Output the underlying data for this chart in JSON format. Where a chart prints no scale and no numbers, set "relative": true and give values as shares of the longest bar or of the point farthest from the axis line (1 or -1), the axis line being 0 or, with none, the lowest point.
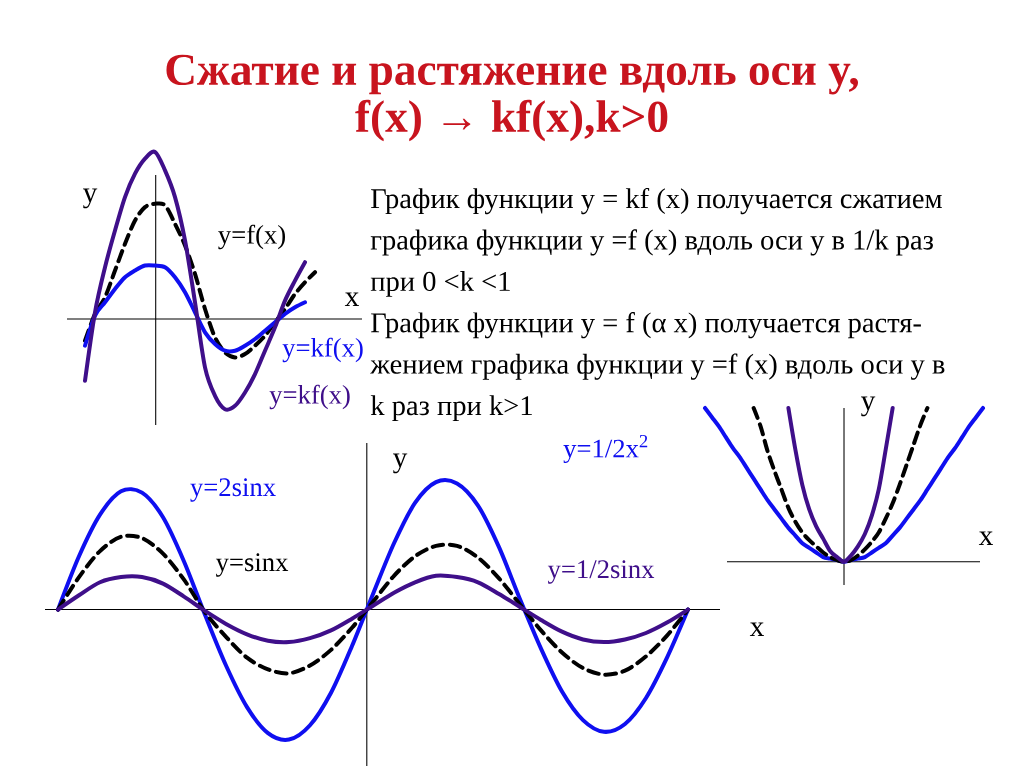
{
  "chart_data": [
    {
      "type": "line",
      "title": "Сжатие и растяжение вдоль оси y, f(x) → kf(x),k>0",
      "xlabel": "x",
      "ylabel": "y",
      "relative": true,
      "annotations": [
        "График функции y = kf (x) получается сжатием",
        "графика функции y =f (x) вдоль оси y в 1/k раз",
        "при 0 <k <1",
        "График функции y = f (α x) получается растя-",
        "жением графика функции y =f (x) вдоль оси y в",
        "k раз при k>1"
      ],
      "categories": [
        null,
        null,
        null,
        null,
        null,
        null,
        null,
        null,
        null,
        null,
        null,
        null,
        null,
        null,
        null,
        null,
        null,
        null,
        null,
        null,
        null,
        null,
        null,
        null
      ],
      "series": [
        {
          "name": "y=f(x)",
          "color": "#000000",
          "line_style": "dashed",
          "values": [
            -0.13,
            0.03,
            0.13,
            0.29,
            0.45,
            0.59,
            0.67,
            0.69,
            0.68,
            0.57,
            0.44,
            0.27,
            0.06,
            -0.11,
            -0.2,
            -0.23,
            -0.21,
            -0.16,
            -0.1,
            -0.02,
            0.06,
            0.15,
            0.22,
            0.28
          ]
        },
        {
          "name": "y=kf(x)",
          "color": "#0f0ff0",
          "values": [
            -0.16,
            0.02,
            0.1,
            0.18,
            0.25,
            0.29,
            0.32,
            0.32,
            0.31,
            0.25,
            0.16,
            0.04,
            -0.08,
            -0.15,
            -0.19,
            -0.19,
            -0.16,
            -0.12,
            -0.07,
            -0.02,
            0.03,
            0.07,
            0.1,
            null
          ]
        },
        {
          "name": "y=kf(x)",
          "color": "#3f0f8a",
          "values": [
            -0.37,
            0.04,
            0.31,
            0.53,
            0.73,
            0.87,
            0.96,
            1.0,
            0.89,
            0.73,
            0.47,
            0.1,
            -0.29,
            -0.46,
            -0.54,
            -0.52,
            -0.44,
            -0.33,
            -0.19,
            -0.05,
            0.11,
            0.23,
            0.34,
            null
          ]
        }
      ]
    },
    {
      "type": "line",
      "xlabel": "x",
      "ylabel": "y",
      "relative": true,
      "categories": [
        null,
        null,
        null,
        null,
        null,
        null,
        null,
        null,
        null,
        null,
        null,
        null,
        null,
        null,
        null,
        null,
        null,
        null,
        null,
        null,
        null,
        null,
        null,
        null,
        null,
        null,
        null,
        null,
        null,
        null,
        null
      ],
      "series": [
        {
          "name": "y=2sinx",
          "color": "#0f0ff0",
          "values": [
            0,
            0.41,
            0.73,
            0.91,
            0.9,
            0.71,
            0.37,
            -0.04,
            -0.43,
            -0.75,
            -0.95,
            -1.0,
            -0.89,
            -0.64,
            -0.28,
            0.12,
            0.51,
            0.82,
            0.98,
            0.97,
            0.8,
            0.48,
            0.08,
            -0.3,
            -0.63,
            -0.85,
            -0.94,
            -0.88,
            -0.68,
            -0.37,
            0
          ]
        },
        {
          "name": "y=sinx",
          "color": "#000000",
          "line_style": "dashed",
          "values": [
            0,
            0.25,
            0.45,
            0.56,
            0.55,
            0.43,
            0.23,
            -0.02,
            -0.21,
            -0.37,
            -0.46,
            -0.49,
            -0.43,
            -0.31,
            -0.14,
            0.06,
            0.26,
            0.41,
            0.49,
            0.49,
            0.4,
            0.24,
            0.04,
            -0.16,
            -0.33,
            -0.45,
            -0.5,
            -0.47,
            -0.36,
            -0.2,
            0
          ]
        },
        {
          "name": "y=1/2sinx",
          "color": "#3f0f8a",
          "values": [
            0,
            0.11,
            0.21,
            0.25,
            0.25,
            0.2,
            0.1,
            -0.01,
            -0.11,
            -0.19,
            -0.24,
            -0.25,
            -0.22,
            -0.16,
            -0.07,
            0.03,
            0.13,
            0.21,
            0.26,
            0.25,
            0.21,
            0.12,
            0.02,
            -0.08,
            -0.17,
            -0.23,
            -0.25,
            -0.23,
            -0.18,
            -0.1,
            0
          ]
        }
      ]
    },
    {
      "type": "line",
      "xlabel": "x",
      "ylabel": "y",
      "relative": true,
      "categories": [
        null,
        null,
        null,
        null,
        null,
        null,
        null,
        null,
        null,
        null,
        null,
        null,
        null,
        null,
        null,
        null,
        null,
        null,
        null,
        null,
        null,
        null,
        null,
        null,
        null,
        null,
        null,
        null,
        null,
        null,
        null,
        null,
        null,
        null,
        null,
        null,
        null,
        null,
        null,
        null,
        null
      ],
      "series": [
        {
          "name": "y=1/2x$^{2}$",
          "color": "#0f0ff0",
          "values": [
            1.0,
            0.94,
            0.88,
            0.81,
            0.74,
            0.68,
            0.61,
            0.54,
            0.47,
            0.4,
            0.34,
            0.28,
            0.22,
            0.17,
            0.12,
            0.09,
            0.06,
            0.03,
            0.02,
            0.01,
            0,
            0.01,
            0.02,
            0.03,
            0.06,
            0.09,
            0.12,
            0.17,
            0.22,
            0.28,
            0.34,
            0.4,
            0.47,
            0.54,
            0.61,
            0.68,
            0.74,
            0.81,
            0.88,
            0.94,
            1.0
          ]
        },
        {
          "color": "#000000",
          "line_style": "dashed",
          "values": [
            null,
            null,
            null,
            null,
            null,
            null,
            null,
            1.0,
            0.88,
            0.72,
            0.59,
            0.47,
            0.35,
            0.26,
            0.19,
            0.14,
            0.1,
            0.06,
            0.03,
            0.01,
            0,
            0.01,
            0.04,
            0.08,
            0.13,
            0.19,
            0.28,
            0.38,
            0.5,
            0.63,
            0.76,
            0.89,
            1.0,
            null,
            null,
            null,
            null,
            null,
            null,
            null,
            null
          ]
        },
        {
          "color": "#3f0f8a",
          "values": [
            null,
            null,
            null,
            null,
            null,
            null,
            null,
            null,
            null,
            null,
            null,
            null,
            1.0,
            0.73,
            0.5,
            0.34,
            0.23,
            0.15,
            0.07,
            0.03,
            0,
            0.04,
            0.1,
            0.18,
            0.3,
            0.47,
            0.73,
            1.0,
            null,
            null,
            null,
            null,
            null,
            null,
            null,
            null,
            null,
            null,
            null,
            null,
            null
          ]
        }
      ]
    }
  ]
}
